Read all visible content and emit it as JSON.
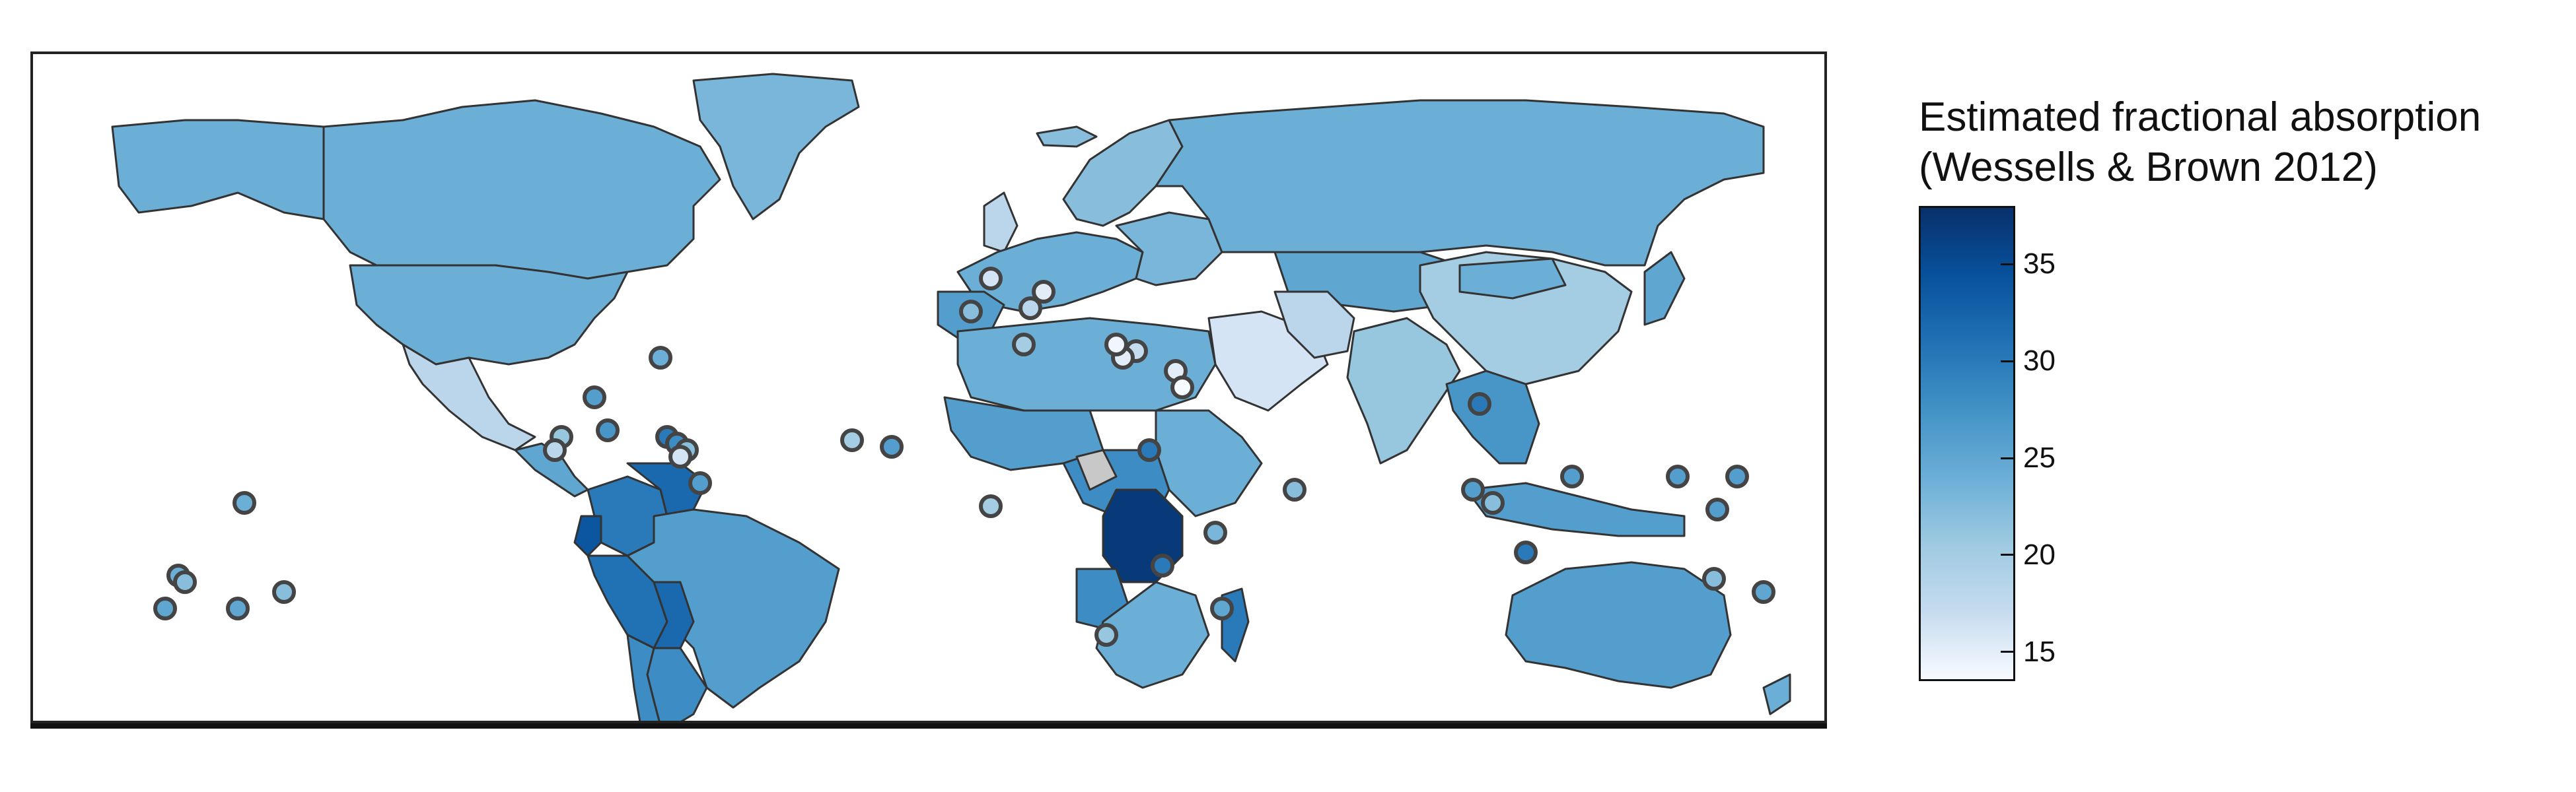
{
  "legend": {
    "title_line1": "Estimated fractional absorption",
    "title_line2": "(Wessells & Brown 2012)",
    "min": 13.5,
    "max": 38,
    "ticks": [
      "15",
      "20",
      "25",
      "30",
      "35"
    ],
    "tick_values": [
      15,
      20,
      25,
      30,
      35
    ],
    "gradient_colors": [
      "#f7fbff",
      "#c6dbef",
      "#9ecae1",
      "#6baed6",
      "#4292c6",
      "#2171b5",
      "#08519c",
      "#08306b"
    ]
  },
  "colors": {
    "land_default": "#5b9dcf",
    "no_data": "#c8c8c8",
    "country_stroke": "#333333",
    "frame": "#222222"
  },
  "map": {
    "projection": "equirectangular",
    "island_value_markers": "circles with dark outline"
  }
}
